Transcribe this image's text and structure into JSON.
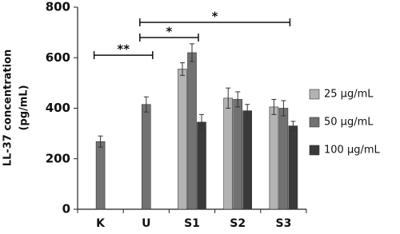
{
  "chart_data": {
    "type": "bar",
    "ylabel": [
      "LL-37 concentration",
      "(pg/mL)"
    ],
    "categories": [
      "K",
      "U",
      "S1",
      "S2",
      "S3"
    ],
    "series": [
      {
        "name": "25 µg/mL",
        "color": "#b3b3b3",
        "values": [
          null,
          null,
          555,
          440,
          405
        ],
        "errors": [
          null,
          null,
          25,
          40,
          30
        ]
      },
      {
        "name": "50 µg/mL",
        "color": "#727272",
        "values": [
          268,
          415,
          620,
          435,
          400
        ],
        "errors": [
          22,
          30,
          35,
          30,
          30
        ]
      },
      {
        "name": "100 µg/mL",
        "color": "#3a3a3a",
        "values": [
          null,
          null,
          345,
          390,
          330
        ],
        "errors": [
          null,
          null,
          30,
          25,
          18
        ]
      }
    ],
    "ylim": [
      0,
      800
    ],
    "yticks": [
      0,
      200,
      400,
      600,
      800
    ],
    "legend": "right",
    "significance": [
      {
        "from": 0,
        "to": 1,
        "label": "**",
        "y": 610
      },
      {
        "from": 1,
        "to": 2,
        "label": "*",
        "y": 680
      },
      {
        "from": 1,
        "to": 4,
        "label": "*",
        "y": 740
      }
    ]
  }
}
